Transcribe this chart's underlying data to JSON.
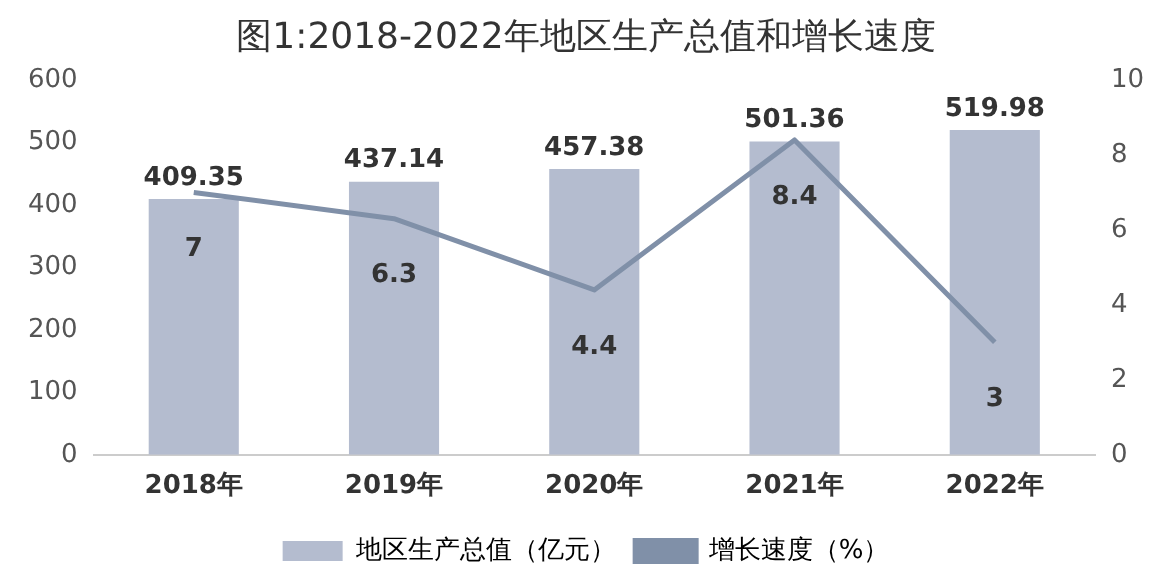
{
  "chart_data": {
    "type": "bar",
    "title": "图1:2018-2022年地区生产总值和增长速度",
    "categories": [
      "2018年",
      "2019年",
      "2020年",
      "2021年",
      "2022年"
    ],
    "series": [
      {
        "name": "地区生产总值（亿元）",
        "color": "#b4bccf",
        "values": [
          409.35,
          437.14,
          457.38,
          501.36,
          519.98
        ]
      },
      {
        "name": "增长速度（%）",
        "type": "line",
        "axis": "y2",
        "color": "#8090a8",
        "values": [
          7,
          6.3,
          4.4,
          8.4,
          3
        ],
        "marker": "none"
      }
    ],
    "ylim": [
      0,
      600
    ],
    "yticks": [
      0,
      100,
      200,
      300,
      400,
      500,
      600
    ],
    "y2lim": [
      0,
      10
    ],
    "y2ticks": [
      0,
      2,
      4,
      6,
      8,
      10
    ],
    "data_labels": true,
    "legend": "bottom",
    "grid": false
  }
}
